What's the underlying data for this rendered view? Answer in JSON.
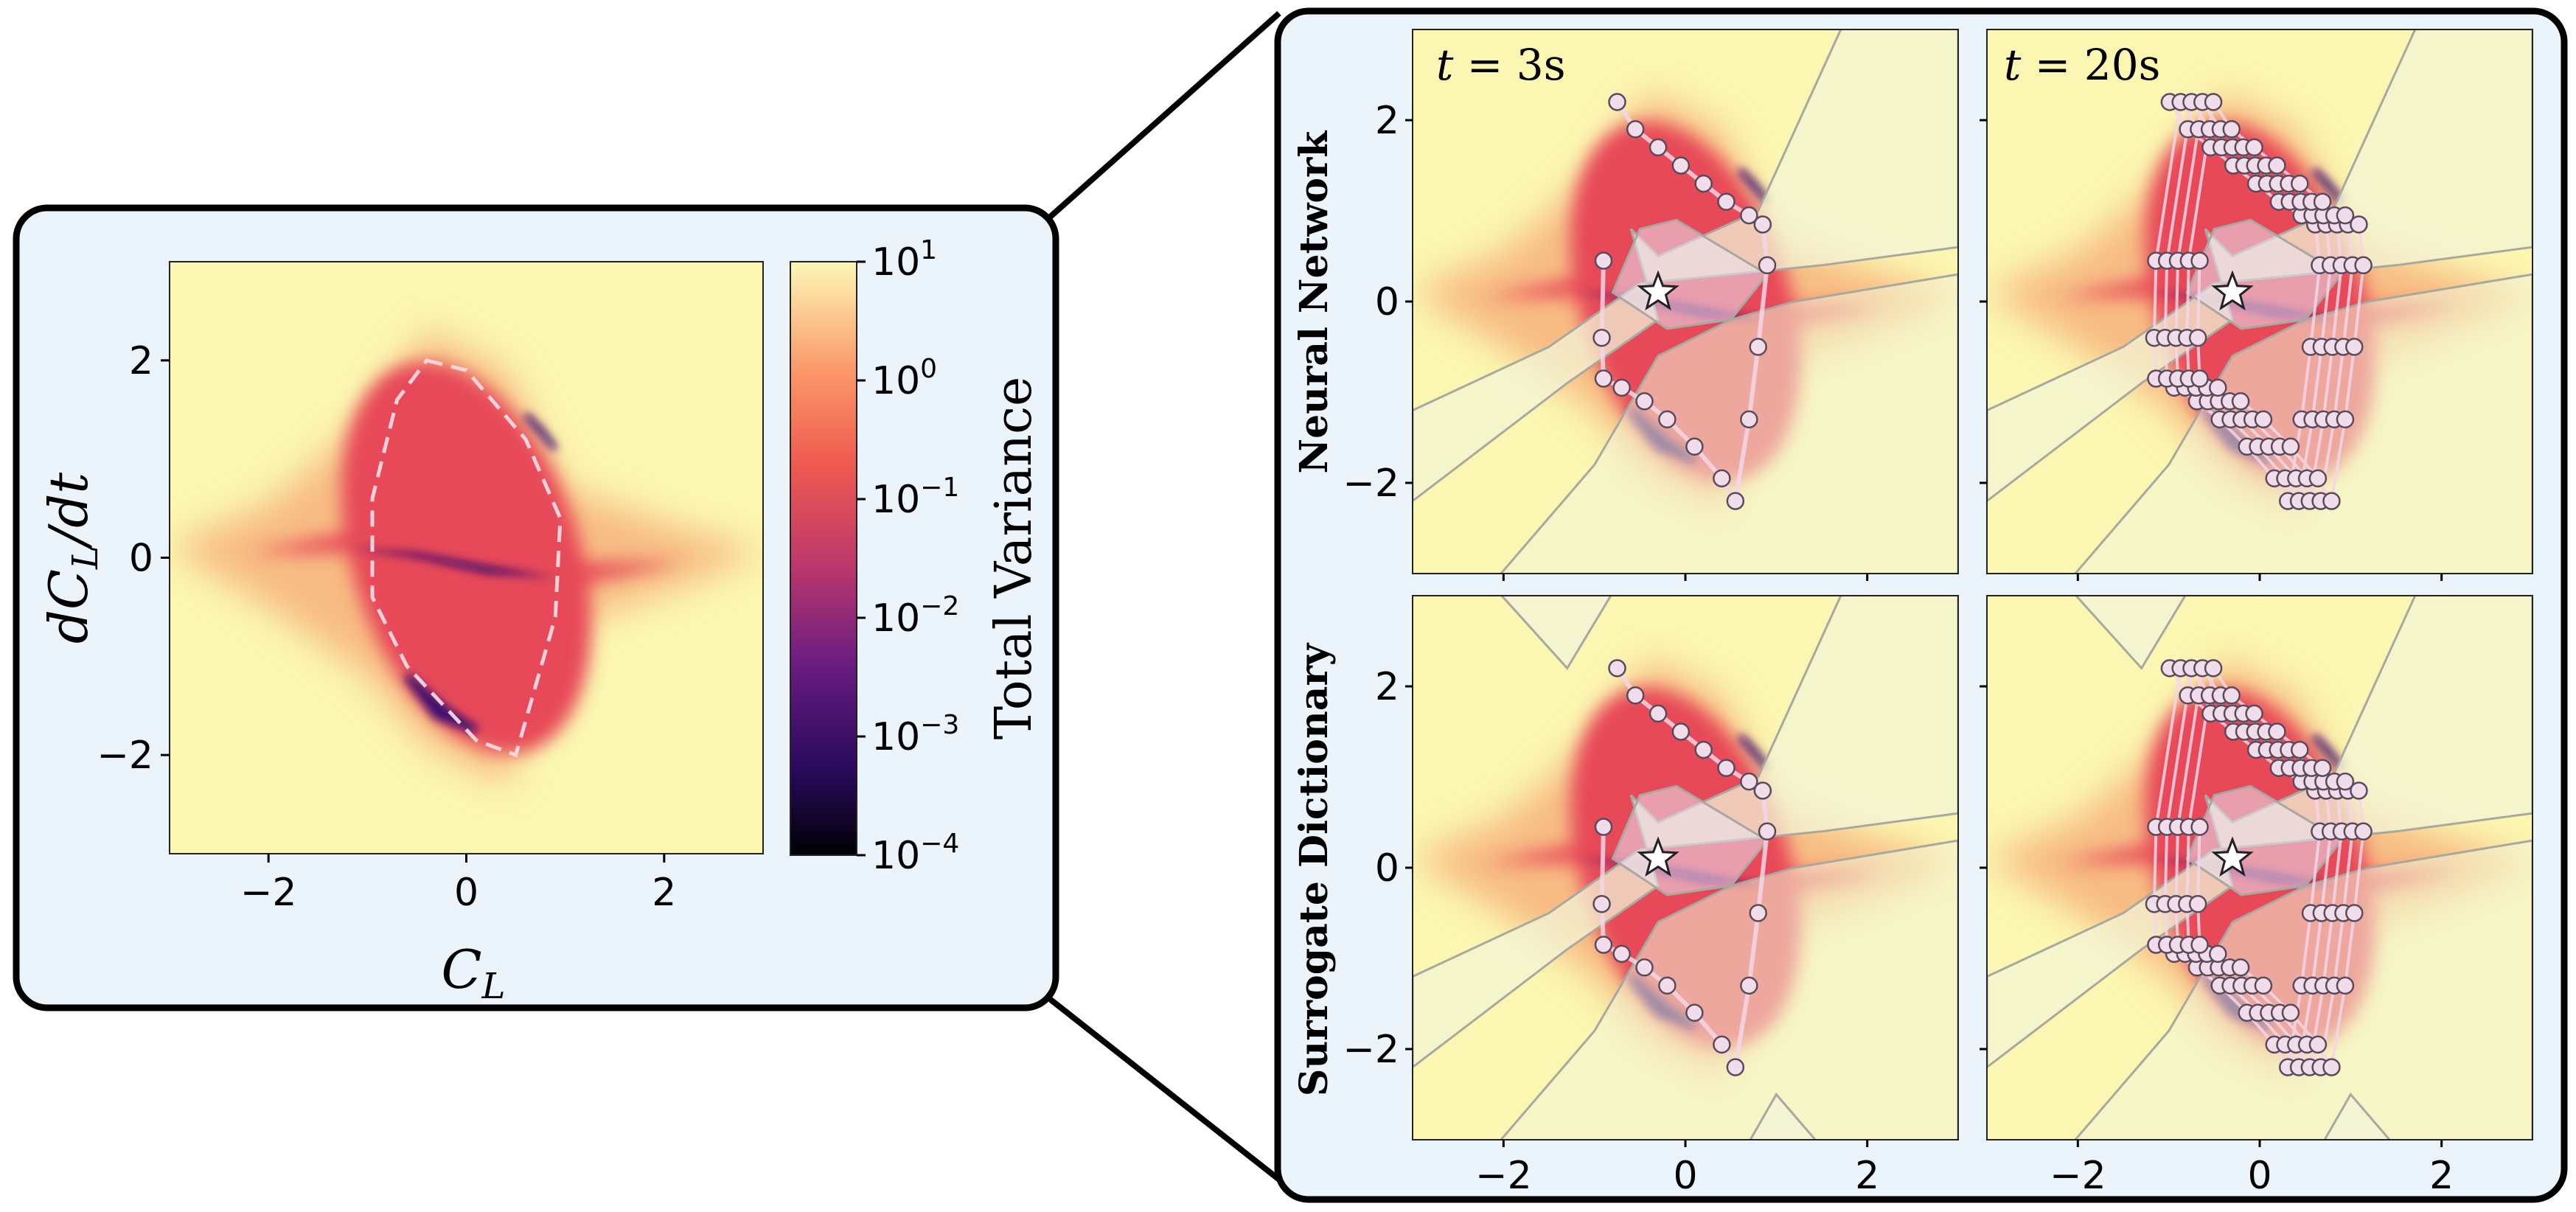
{
  "chart_data": [
    {
      "type": "heatmap",
      "panel": "overview",
      "xlabel": "C_L",
      "ylabel": "dC_L/dt",
      "xlim": [
        -3,
        3
      ],
      "ylim": [
        -3,
        3
      ],
      "xticks": [
        "−2",
        "0",
        "2"
      ],
      "yticks": [
        "−2",
        "0",
        "2"
      ],
      "colorbar": {
        "label": "Total Variance",
        "scale": "log",
        "ticks": [
          {
            "base": "10",
            "exp": "1"
          },
          {
            "base": "10",
            "exp": "0"
          },
          {
            "base": "10",
            "exp": "−1"
          },
          {
            "base": "10",
            "exp": "−2"
          },
          {
            "base": "10",
            "exp": "−3"
          },
          {
            "base": "10",
            "exp": "−4"
          }
        ]
      },
      "limit_cycle": [
        [
          -0.4,
          2.0
        ],
        [
          0.0,
          1.9
        ],
        [
          0.6,
          1.2
        ],
        [
          0.95,
          0.4
        ],
        [
          0.9,
          -0.6
        ],
        [
          0.5,
          -2.0
        ],
        [
          0.1,
          -1.85
        ],
        [
          -0.6,
          -1.1
        ],
        [
          -0.95,
          -0.4
        ],
        [
          -0.95,
          0.6
        ],
        [
          -0.7,
          1.6
        ]
      ]
    },
    {
      "type": "scatter",
      "panel": "zoom",
      "rows": [
        "Neural Network",
        "Surrogate Dictionary"
      ],
      "columns": [
        {
          "t": "3",
          "unit": "s"
        },
        {
          "t": "20",
          "unit": "s"
        }
      ],
      "xticks": [
        "−2",
        "0",
        "2"
      ],
      "yticks": [
        "−2",
        "0",
        "2"
      ],
      "xlim": [
        -3,
        3
      ],
      "ylim": [
        -3,
        3
      ],
      "star": [
        -0.3,
        0.1
      ]
    }
  ],
  "colors": {
    "panel_bg": "#ebf3fb",
    "panel_border": "#000000",
    "field_bg": "#fbf6b1",
    "outer": "#f7bb83",
    "mid": "#e74a58",
    "low": "#3b1070",
    "marker_fill": "#f1dcec",
    "marker_stroke": "#5a4a5a"
  }
}
